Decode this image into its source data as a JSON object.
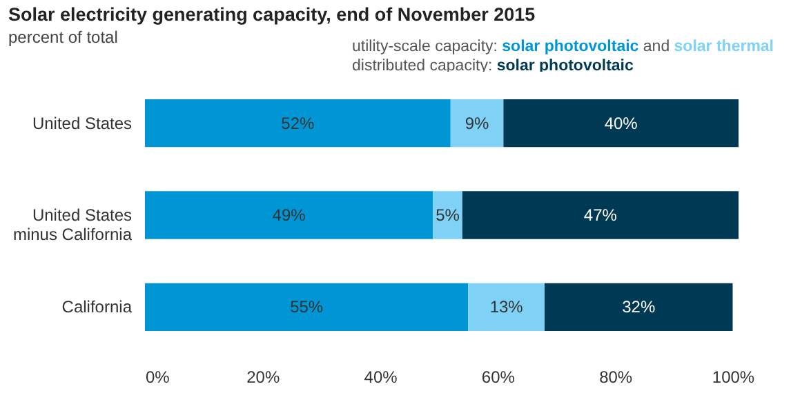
{
  "chart_data": {
    "type": "bar",
    "orientation": "horizontal",
    "stacked": true,
    "title": "Solar electricity generating capacity, end of November 2015",
    "subtitle": "percent of total",
    "categories": [
      "United States",
      "United States minus California",
      "California"
    ],
    "series": [
      {
        "name": "solar photovoltaic",
        "color": "#0096d6",
        "values": [
          52,
          49,
          55
        ],
        "value_labels": [
          "52%",
          "49%",
          "55%"
        ]
      },
      {
        "name": "solar thermal",
        "color": "#7fd1f5",
        "values": [
          9,
          5,
          13
        ],
        "value_labels": [
          "9%",
          "5%",
          "13%"
        ]
      },
      {
        "name": "solar photovoltaic",
        "color": "#003953",
        "values": [
          40,
          47,
          32
        ],
        "value_labels": [
          "40%",
          "47%",
          "32%"
        ]
      }
    ],
    "annotations": [
      "utility-scale capacity:",
      "and",
      "distributed capacity:"
    ],
    "legend": "top",
    "grid": false,
    "xlim": [
      0,
      101
    ],
    "xticks": [
      {
        "value": 0,
        "label": "0%"
      },
      {
        "value": 20,
        "label": "20%"
      },
      {
        "value": 40,
        "label": "40%"
      },
      {
        "value": 60,
        "label": "60%"
      },
      {
        "value": 80,
        "label": "80%"
      },
      {
        "value": 100,
        "label": "100%"
      }
    ]
  }
}
